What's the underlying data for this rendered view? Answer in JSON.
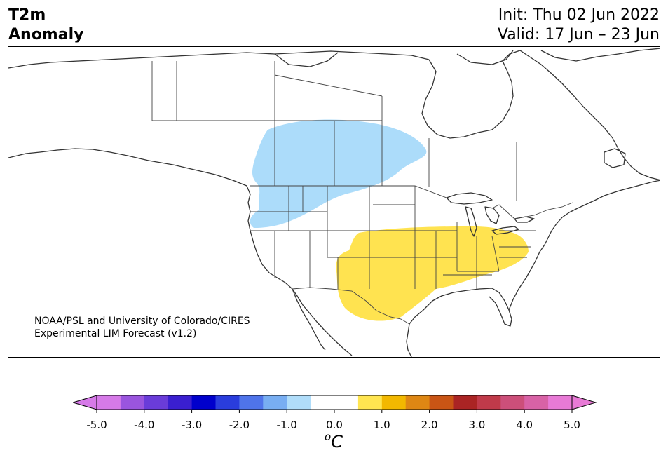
{
  "title": {
    "left_line1": "T2m",
    "left_line2": "Anomaly",
    "init": "Init: Thu 02 Jun 2022",
    "valid": "Valid: 17 Jun – 23 Jun"
  },
  "credit": {
    "line1": "NOAA/PSL and University of Colorado/CIRES",
    "line2": "Experimental LIM Forecast (v1.2)"
  },
  "colorbar": {
    "unit_base": "C",
    "unit_sup": "o",
    "ticks": [
      "-5.0",
      "-4.0",
      "-3.0",
      "-2.0",
      "-1.0",
      "0.0",
      "1.0",
      "2.0",
      "3.0",
      "4.0",
      "5.0"
    ],
    "under_color": "#d67ae8",
    "over_color": "#e87ad6",
    "bins": [
      "#d67ae8",
      "#9a55de",
      "#6a3cd9",
      "#3a1fd0",
      "#0000cc",
      "#2a3ddd",
      "#4f74ea",
      "#78aef2",
      "#b0ddfa",
      "#ffffff",
      "#ffffff",
      "#ffe550",
      "#f2b800",
      "#de8714",
      "#c95515",
      "#aa2424",
      "#c03a4a",
      "#cc4f7a",
      "#d862a6",
      "#e87ad6"
    ]
  },
  "anomaly_regions": [
    {
      "name": "cold-anomaly-northwest",
      "bin": "-1.0 to -0.5",
      "color": "#acdcfa"
    },
    {
      "name": "warm-anomaly-south-central",
      "bin": "0.5 to 1.0",
      "color": "#ffe350"
    }
  ]
}
